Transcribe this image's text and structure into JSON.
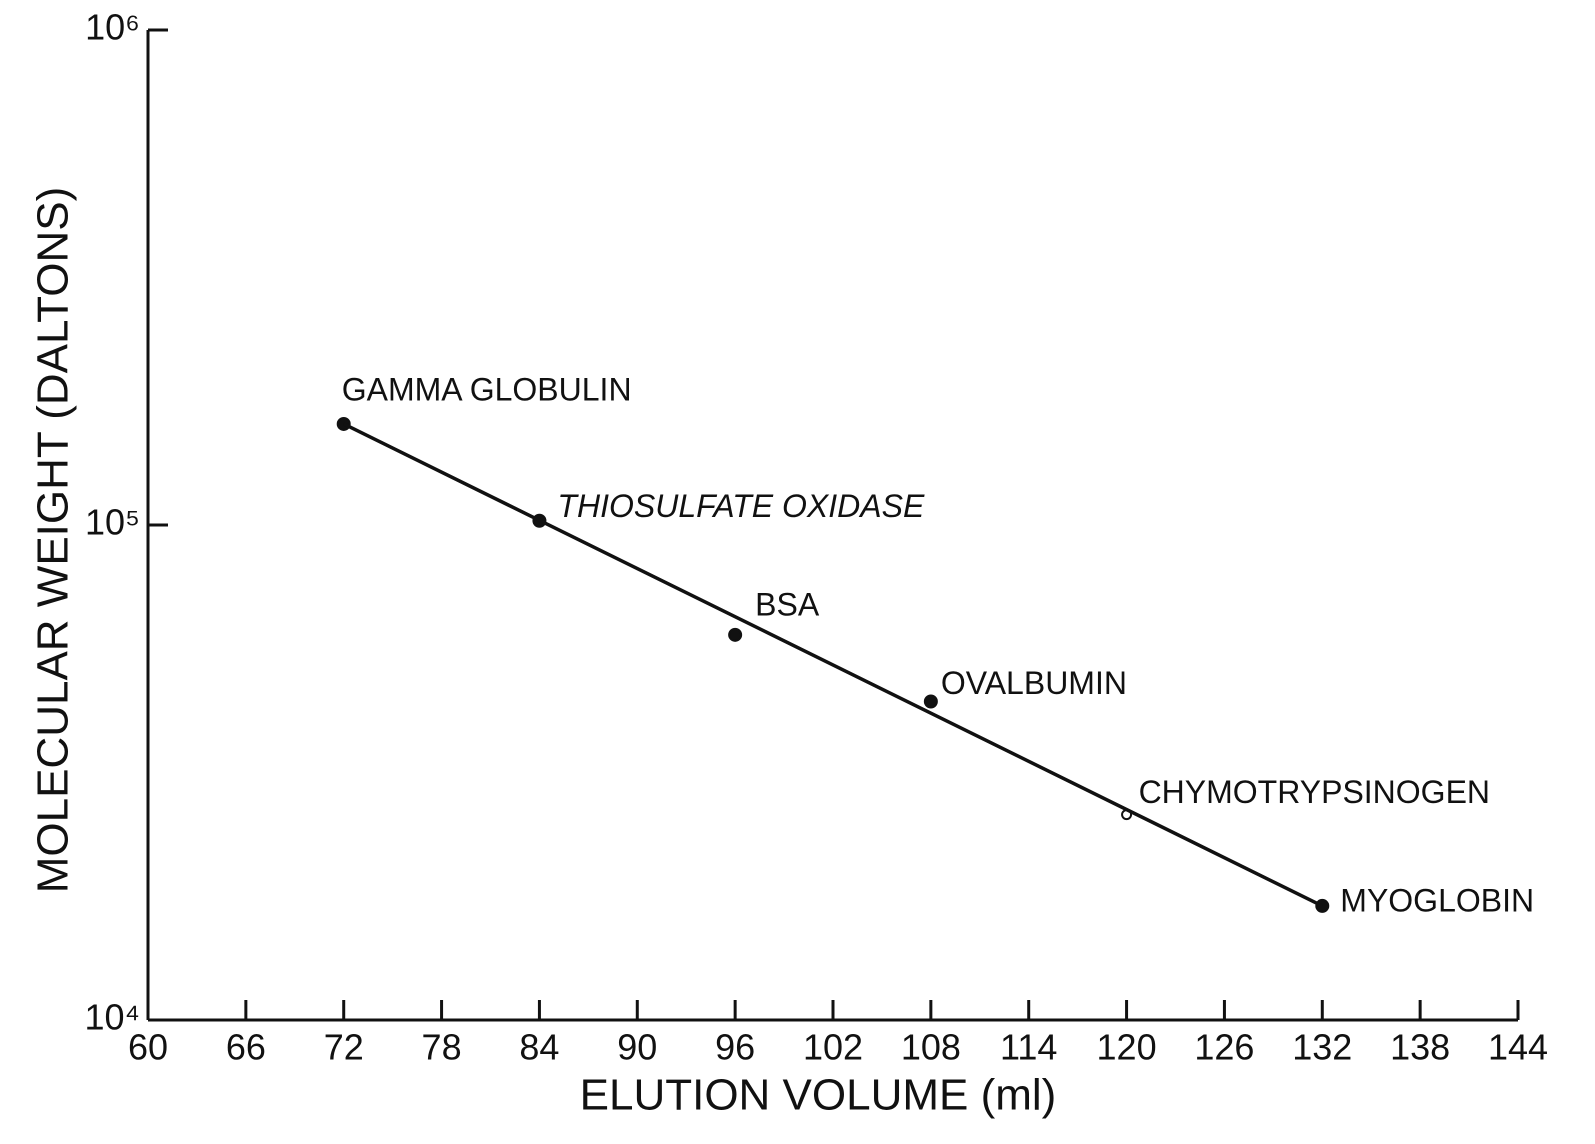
{
  "chart_data": {
    "type": "scatter",
    "xlabel": "ELUTION VOLUME (ml)",
    "ylabel": "MOLECULAR WEIGHT (DALTONS)",
    "log_y": true,
    "xlim": [
      60,
      144
    ],
    "xticks": [
      60,
      66,
      72,
      78,
      84,
      90,
      96,
      102,
      108,
      114,
      120,
      126,
      132,
      138,
      144
    ],
    "ylim": [
      10000,
      1000000
    ],
    "yticks": [
      {
        "value": 10000,
        "label": "10⁴"
      },
      {
        "value": 100000,
        "label": "10⁵"
      },
      {
        "value": 1000000,
        "label": "10⁶"
      }
    ],
    "color": "#111111",
    "series": [
      {
        "x": [
          72,
          84,
          96,
          108,
          120,
          132
        ],
        "values": [
          160000,
          102000,
          60000,
          44000,
          26000,
          17000
        ],
        "labels": [
          "GAMMA GLOBULIN",
          "THIOSULFATE OXIDASE",
          "BSA",
          "OVALBUMIN",
          "CHYMOTRYPSINOGEN",
          "MYOGLOBIN"
        ],
        "label_italic": [
          false,
          true,
          false,
          false,
          false,
          false
        ],
        "hollow": [
          false,
          false,
          false,
          false,
          true,
          false
        ]
      },
      {
        "x": [
          72,
          132
        ],
        "values": [
          160000,
          17000
        ],
        "line": true
      }
    ]
  }
}
